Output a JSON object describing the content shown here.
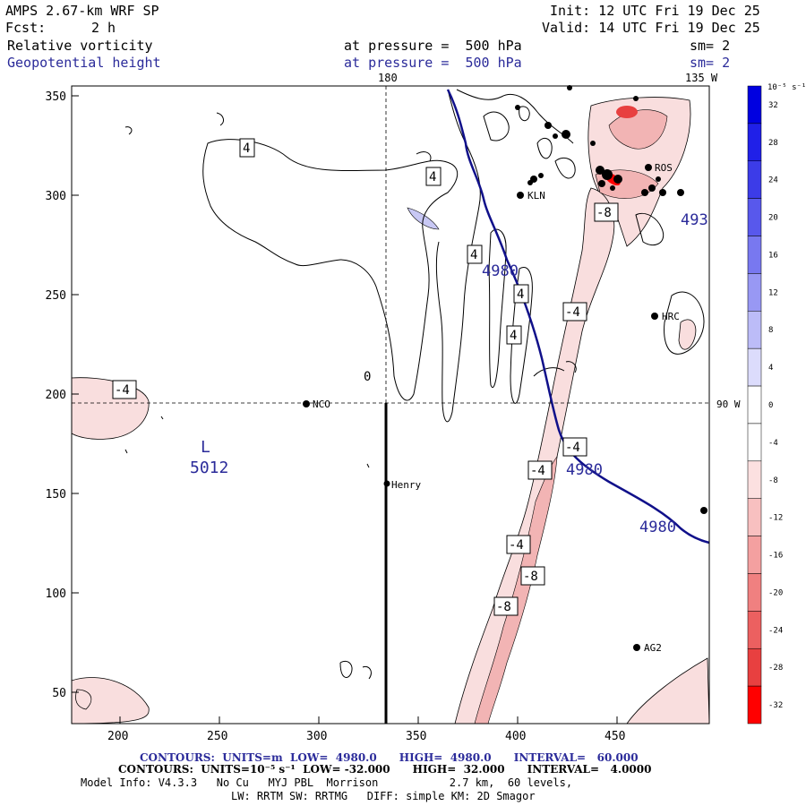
{
  "header": {
    "title": "AMPS 2.67-km WRF SP",
    "fcst_label": "Fcst:",
    "fcst_value": "2 h",
    "init": "Init: 12 UTC Fri 19 Dec 25",
    "valid": "Valid: 14 UTC Fri 19 Dec 25",
    "field1": "Relative vorticity",
    "field2": "Geopotential height",
    "pressure1": "at pressure =  500 hPa",
    "pressure2": "at pressure =  500 hPa",
    "sm1": "sm= 2",
    "sm2": "sm= 2"
  },
  "map": {
    "meridian_top_left": "180",
    "meridian_top_right": "135 W",
    "meridian_right": "90 W",
    "x_ticks": [
      "200",
      "250",
      "300",
      "350",
      "400",
      "450"
    ],
    "y_ticks": [
      "50",
      "100",
      "150",
      "200",
      "250",
      "300",
      "350"
    ],
    "stations": [
      "NCO",
      "Henry",
      "KLN",
      "ROS",
      "HRC",
      "AG2"
    ],
    "low_label": "L",
    "low_value": "5012",
    "height_labels": [
      "4980",
      "4980",
      "4980",
      "493"
    ],
    "vort_labels": [
      "4",
      "4",
      "4",
      "4",
      "4",
      "-4",
      "-4",
      "-4",
      "-4",
      "-4",
      "-8",
      "-8",
      "-8"
    ],
    "zero_label": "0"
  },
  "colorbar": {
    "unit": "10⁻⁵ s⁻¹",
    "labels": [
      "32",
      "28",
      "24",
      "20",
      "16",
      "12",
      "8",
      "4",
      "0",
      "-4",
      "-8",
      "-12",
      "-16",
      "-20",
      "-24",
      "-28",
      "-32"
    ],
    "colors": [
      "#0000e0",
      "#2020e8",
      "#3c3ce8",
      "#5858ec",
      "#7878f0",
      "#9898f4",
      "#bcbcf8",
      "#dcdcfc",
      "#ffffff",
      "#ffffff",
      "#fce0e0",
      "#f8c0c0",
      "#f4a0a0",
      "#f08080",
      "#ec6060",
      "#e84040",
      "#ff0000"
    ]
  },
  "footer": {
    "contours1": "CONTOURS:  UNITS=m  LOW=  4980.0      HIGH=  4980.0      INTERVAL=   60.000",
    "contours2": "CONTOURS:  UNITS=10⁻⁵ s⁻¹  LOW= -32.000      HIGH=  32.000      INTERVAL=   4.0000",
    "model_info": "Model Info: V4.3.3   No Cu   MYJ PBL  Morrison           2.7 km,  60 levels,",
    "model_info2": "LW: RRTM SW: RRTMG   DIFF: simple KM: 2D Smagor"
  }
}
